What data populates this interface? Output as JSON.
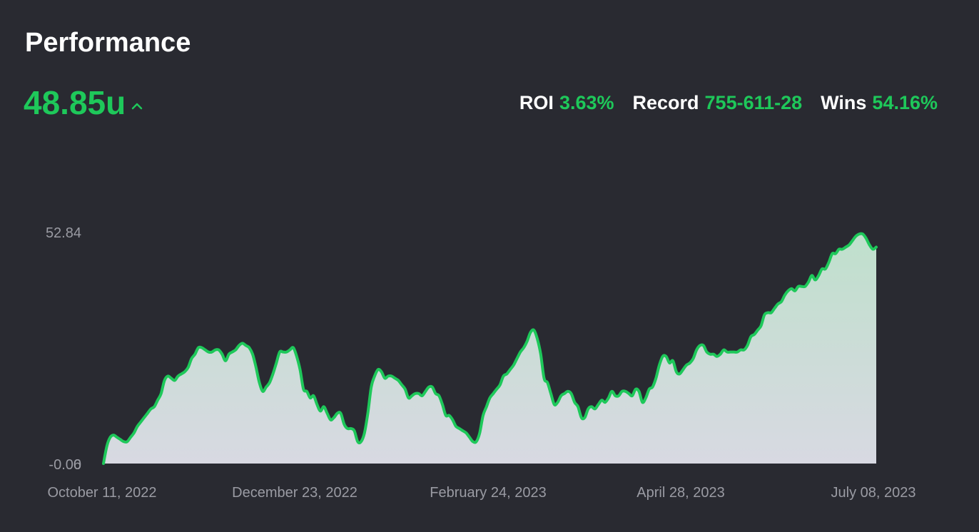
{
  "header": {
    "title": "Performance",
    "total": "48.85u"
  },
  "stats": [
    {
      "label": "ROI",
      "value": "3.63%"
    },
    {
      "label": "Record",
      "value": "755-611-28"
    },
    {
      "label": "Wins",
      "value": "54.16%"
    }
  ],
  "colors": {
    "background": "#292a31",
    "accent": "#1ec85a",
    "line": "#1ec85a",
    "fill_top": "#bfe0cc",
    "fill_bottom": "#d8d9e2"
  },
  "icons": {
    "trend": "chevron-up-icon"
  },
  "chart_data": {
    "type": "area",
    "title": "",
    "xlabel": "",
    "ylabel": "",
    "x_ticks": [
      "October 11, 2022",
      "December 23, 2022",
      "February 24, 2023",
      "April 28, 2023",
      "July 08, 2023"
    ],
    "y_ticks": [
      "52.84",
      "-0.06",
      "0"
    ],
    "ylim": [
      0,
      52.84
    ],
    "grid": false,
    "legend": "none",
    "series": [
      {
        "values": [
          0,
          4,
          6,
          6.5,
          6,
          5.5,
          5,
          5,
          6,
          7,
          8.5,
          9.5,
          10.5,
          11.5,
          12.5,
          13,
          14.5,
          16,
          19,
          20,
          19.5,
          19,
          20,
          20.5,
          21,
          22,
          24,
          25,
          26.5,
          26.5,
          26,
          25.5,
          25.5,
          26,
          26,
          25,
          23.5,
          25,
          25.5,
          26,
          27,
          27.5,
          27,
          26.5,
          25,
          22,
          18.5,
          16.5,
          17.5,
          18.5,
          20.5,
          23,
          25.5,
          25.5,
          25.5,
          26,
          26.5,
          24.5,
          21.5,
          17,
          16.5,
          15,
          15.5,
          13.5,
          12,
          13,
          11.5,
          10,
          10.5,
          11.5,
          11.5,
          9,
          8,
          8,
          7.5,
          5,
          5,
          7,
          11.5,
          17.5,
          20,
          21.5,
          21,
          19.5,
          20,
          20,
          19.5,
          19,
          18,
          17,
          15,
          15.5,
          16,
          16,
          15.5,
          16.5,
          17.5,
          17.5,
          16,
          15.5,
          13.5,
          11,
          11,
          10,
          8.5,
          8,
          7.5,
          7,
          6,
          5,
          5,
          7,
          11,
          13,
          15,
          16,
          17,
          18,
          20,
          20.5,
          21.5,
          22.5,
          24,
          25.5,
          26.5,
          28,
          30,
          30.5,
          28.5,
          25,
          19.5,
          18.5,
          16,
          13.5,
          14,
          15.5,
          16,
          16.5,
          16,
          14,
          13,
          10.5,
          10.5,
          12.5,
          13,
          12.5,
          13.5,
          14.5,
          14,
          15,
          16.5,
          15.5,
          15.5,
          16.5,
          16.5,
          16,
          15.5,
          17,
          16.5,
          14,
          15,
          17,
          17.5,
          19.5,
          22.5,
          24.5,
          24.5,
          23,
          23.5,
          21,
          20.5,
          21.5,
          22.5,
          23,
          24,
          26,
          27,
          27,
          25.5,
          25,
          25,
          24.5,
          25,
          26,
          25.5,
          25.5,
          25.5,
          25.5,
          26,
          26,
          27,
          29,
          29.5,
          30.5,
          31.5,
          34,
          34.5,
          34.5,
          35.5,
          36.5,
          37,
          38.5,
          39.5,
          40,
          39.5,
          40.5,
          40.5,
          40.5,
          41.5,
          43,
          42,
          43,
          44.5,
          44.5,
          46,
          48,
          48,
          49,
          49,
          49.5,
          50,
          51,
          52,
          52.5,
          52.5,
          51.5,
          50,
          49,
          49.5
        ]
      }
    ]
  }
}
